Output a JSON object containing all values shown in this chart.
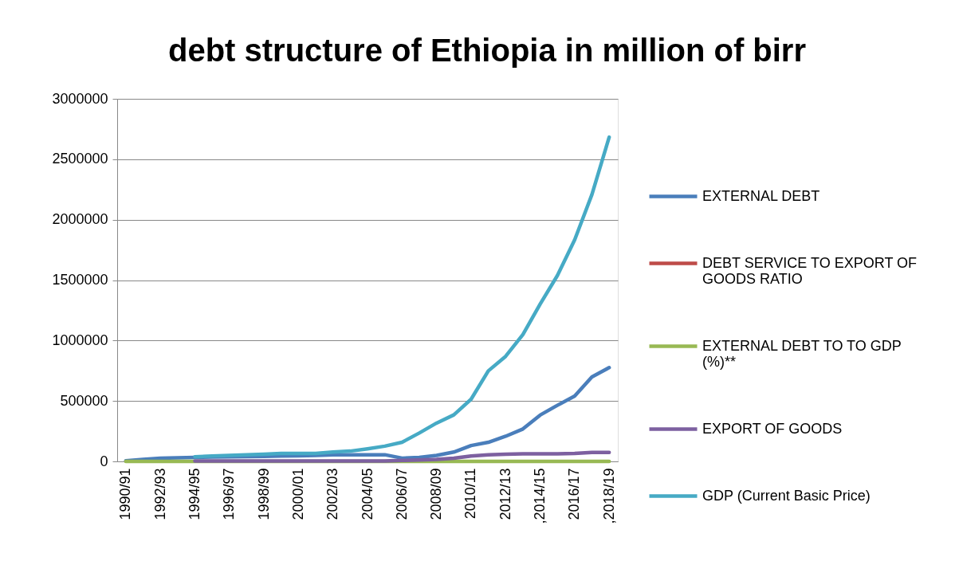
{
  "chart_data": {
    "type": "line",
    "title": "debt structure of Ethiopia in million of birr",
    "categories": [
      "1990/91",
      null,
      "1992/93",
      null,
      "1994/95",
      null,
      "1996/97",
      null,
      "1998/99",
      null,
      "2000/01",
      null,
      "2002/03",
      null,
      "2004/05",
      null,
      "2006/07",
      null,
      "2008/09",
      null,
      "2010/11",
      null,
      "2012/13",
      null,
      ",2014/15",
      null,
      "2016/17",
      null,
      ",2018/19"
    ],
    "series": [
      {
        "name": " EXTERNAL DEBT",
        "color": "#4a7ebb",
        "values": [
          5000,
          16000,
          27000,
          30000,
          33000,
          36000,
          38000,
          40000,
          42000,
          44000,
          46000,
          50000,
          55000,
          55000,
          55000,
          55000,
          27000,
          33000,
          49000,
          77000,
          131000,
          158000,
          208000,
          268000,
          383000,
          464000,
          541000,
          699000,
          776000
        ]
      },
      {
        "name": "DEBT SERVICE TO EXPORT OF GOODS RATIO",
        "color": "#be4b48",
        "values": [
          null,
          null,
          null,
          null,
          null,
          null,
          null,
          null,
          null,
          null,
          null,
          null,
          null,
          null,
          null,
          null,
          null,
          null,
          null,
          null,
          null,
          null,
          null,
          null,
          null,
          null,
          null,
          null,
          null
        ]
      },
      {
        "name": "EXTERNAL DEBT TO  TO GDP (%)**",
        "color": "#98b954",
        "values": [
          0,
          0,
          0,
          0,
          0,
          0,
          0,
          0,
          0,
          0,
          0,
          0,
          0,
          0,
          0,
          0,
          0,
          0,
          0,
          0,
          0,
          0,
          0,
          0,
          0,
          0,
          0,
          0,
          0
        ]
      },
      {
        "name": "EXPORT OF GOODS",
        "color": "#7d60a0",
        "values": [
          null,
          null,
          null,
          null,
          3000,
          3000,
          3000,
          3000,
          3000,
          3000,
          3000,
          3000,
          3000,
          3000,
          3000,
          3000,
          8000,
          11000,
          16000,
          27000,
          44000,
          55000,
          60000,
          63000,
          63000,
          63000,
          66000,
          74000,
          74000
        ]
      },
      {
        "name": "GDP (Current Basic Price)",
        "color": "#46aac5",
        "values": [
          null,
          null,
          null,
          null,
          38000,
          44000,
          49000,
          55000,
          60000,
          66000,
          66000,
          66000,
          77000,
          85000,
          104000,
          126000,
          158000,
          235000,
          317000,
          385000,
          514000,
          749000,
          869000,
          1049000,
          1301000,
          1538000,
          1833000,
          2208000,
          2683000
        ]
      }
    ],
    "ylim": [
      0,
      3000000
    ],
    "yticks": [
      0,
      500000,
      1000000,
      1500000,
      2000000,
      2500000,
      3000000
    ],
    "grid": "y",
    "legend": "right",
    "marker": "none",
    "line_style": "solid"
  }
}
